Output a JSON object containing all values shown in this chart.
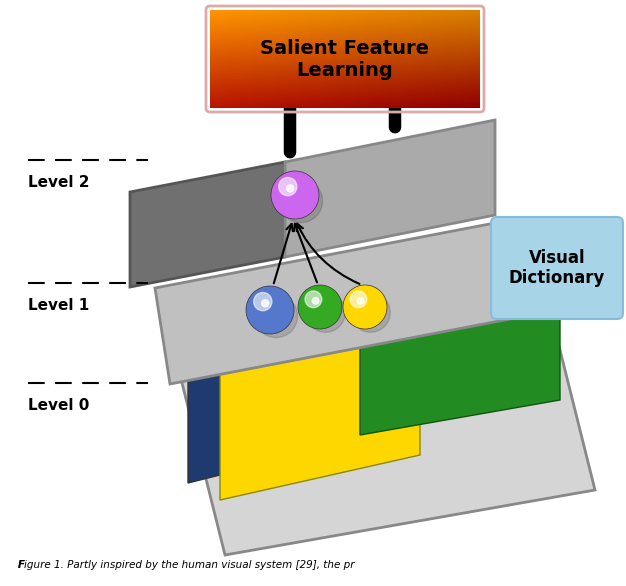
{
  "title": "Salient Feature\nLearning",
  "visual_dict_label": "Visual\nDictionary",
  "bg_color": "#ffffff",
  "caption": "igure 1. Partly inspired by the human visual system [29], the pr",
  "level_labels": [
    "Level 2",
    "Level 1",
    "Level 0"
  ],
  "sphere_blue": "#5577cc",
  "sphere_green": "#33aa22",
  "sphere_yellow": "#FFD700",
  "sphere_purple": "#cc77ee",
  "layer0_frame": "#d0d0d0",
  "layer1_color": "#bbbbbb",
  "layer2_dark": "#777777",
  "layer2_light": "#aaaaaa",
  "blue_patch": "#1a3a6b",
  "yellow_patch": "#FFD700",
  "green_patch": "#228B22"
}
